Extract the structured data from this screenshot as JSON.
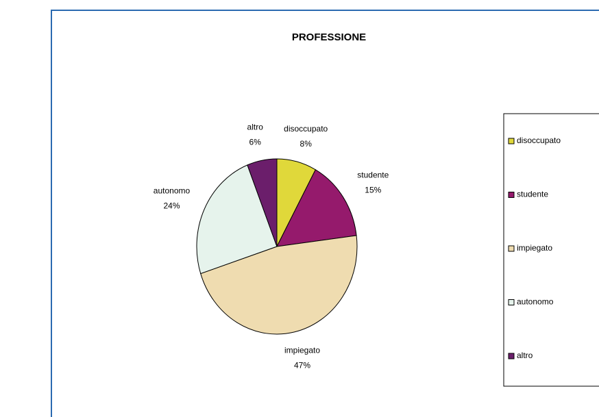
{
  "chart_data": {
    "type": "pie",
    "title": "PROFESSIONE",
    "categories": [
      "disoccupato",
      "studente",
      "impiegato",
      "autonomo",
      "altro"
    ],
    "values": [
      8,
      15,
      47,
      24,
      6
    ],
    "value_labels": [
      "8%",
      "15%",
      "47%",
      "24%",
      "6%"
    ],
    "colors": [
      "#e0d83a",
      "#951a6c",
      "#efdcb0",
      "#e6f3ec",
      "#6b1e6b"
    ],
    "legend": "right"
  }
}
